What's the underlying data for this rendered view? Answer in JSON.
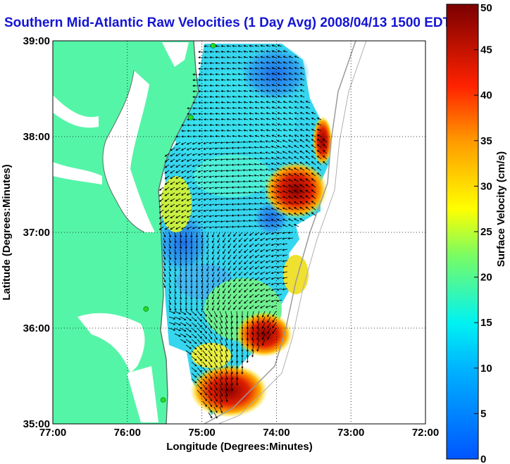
{
  "title": "Southern Mid-Atlantic Raw Velocities (1 Day Avg) 2008/04/13 1500 EDT",
  "axes": {
    "xlabel": "Longitude (Degrees:Minutes)",
    "ylabel": "Latitude (Degrees:Minutes)",
    "xticks": [
      "77:00",
      "76:00",
      "75:00",
      "74:00",
      "73:00",
      "72:00"
    ],
    "yticks": [
      "39:00",
      "38:00",
      "37:00",
      "36:00",
      "35:00"
    ]
  },
  "colorbar": {
    "label": "Surface Velocity (cm/s)",
    "ticks": [
      "0",
      "5",
      "10",
      "15",
      "20",
      "25",
      "30",
      "35",
      "40",
      "45",
      "50"
    ],
    "min": 0,
    "max": 50
  },
  "colors": {
    "land": "#55f5a8",
    "title": "#1414d4",
    "coast": "#5a6e64",
    "isobath": "#9a9a9a",
    "station": "#22dd22"
  },
  "map_extent": {
    "lon_range": [
      -77,
      -72
    ],
    "lat_range": [
      35,
      39
    ]
  },
  "stations": [
    {
      "lon": -74.85,
      "lat": 38.95
    },
    {
      "lon": -75.15,
      "lat": 38.2
    },
    {
      "lon": -75.75,
      "lat": 36.2
    },
    {
      "lon": -75.52,
      "lat": 35.25
    }
  ]
}
